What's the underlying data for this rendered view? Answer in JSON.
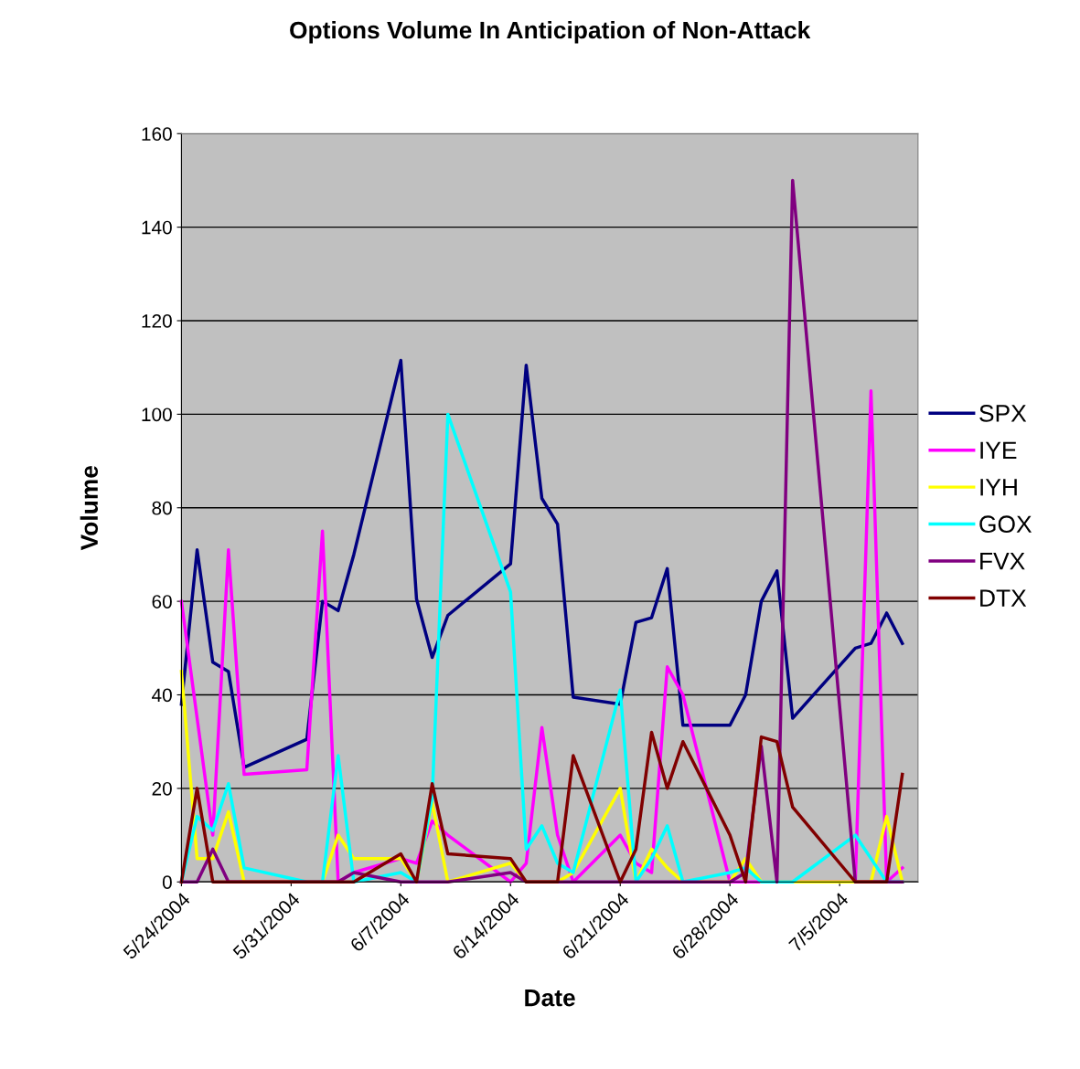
{
  "chart_data": {
    "type": "line",
    "title": "Options Volume In Anticipation of Non-Attack",
    "xlabel": "Date",
    "ylabel": "Volume",
    "x": [
      "2004-05-24",
      "2004-05-25",
      "2004-05-26",
      "2004-05-27",
      "2004-05-28",
      "2004-06-01",
      "2004-06-02",
      "2004-06-03",
      "2004-06-04",
      "2004-06-07",
      "2004-06-08",
      "2004-06-09",
      "2004-06-10",
      "2004-06-14",
      "2004-06-15",
      "2004-06-16",
      "2004-06-17",
      "2004-06-18",
      "2004-06-21",
      "2004-06-22",
      "2004-06-23",
      "2004-06-24",
      "2004-06-25",
      "2004-06-28",
      "2004-06-29",
      "2004-06-30",
      "2004-07-01",
      "2004-07-02",
      "2004-07-06",
      "2004-07-07",
      "2004-07-08",
      "2004-07-09"
    ],
    "series": [
      {
        "name": "SPX",
        "color": "#000080",
        "values": [
          38,
          71,
          47,
          45,
          24.5,
          30.5,
          60,
          58,
          70,
          111.5,
          60.5,
          48,
          57,
          68,
          110.5,
          82,
          76.5,
          39.5,
          38,
          55.5,
          56.5,
          67,
          33.5,
          33.5,
          40,
          60,
          66.5,
          35,
          50,
          51,
          57.5,
          51
        ]
      },
      {
        "name": "IYE",
        "color": "#ff00ff",
        "values": [
          60,
          35,
          10,
          71,
          23,
          24,
          75,
          0,
          2,
          5,
          4,
          13,
          10,
          0,
          4,
          33,
          10,
          0,
          10,
          4,
          2,
          46,
          40,
          0,
          0,
          0,
          0,
          0,
          0,
          105,
          0,
          3
        ]
      },
      {
        "name": "IYH",
        "color": "#ffff00",
        "values": [
          45,
          5,
          5,
          15,
          0,
          0,
          0,
          10,
          5,
          5,
          0,
          17,
          0,
          4,
          0,
          0,
          0,
          2,
          20,
          0,
          7,
          3,
          0,
          0,
          5,
          0,
          0,
          0,
          0,
          0,
          14,
          0
        ]
      },
      {
        "name": "GOX",
        "color": "#00ffff",
        "values": [
          0,
          14,
          11,
          21,
          3,
          0,
          0,
          27,
          0,
          2,
          0,
          18,
          100,
          62,
          7,
          12,
          4,
          2,
          41,
          0,
          5,
          12,
          0,
          2,
          3,
          0,
          0,
          0,
          10,
          5,
          0,
          0
        ]
      },
      {
        "name": "FVX",
        "color": "#800080",
        "values": [
          0,
          0,
          7,
          0,
          0,
          0,
          0,
          0,
          2,
          0,
          0,
          0,
          0,
          2,
          0,
          0,
          0,
          0,
          0,
          0,
          0,
          0,
          0,
          0,
          2,
          29,
          0,
          150,
          0,
          0,
          0,
          0
        ]
      },
      {
        "name": "DTX",
        "color": "#800000",
        "values": [
          0,
          20,
          0,
          0,
          0,
          0,
          0,
          0,
          0,
          6,
          0,
          21,
          6,
          5,
          0,
          0,
          0,
          27,
          0,
          7,
          32,
          20,
          30,
          10,
          0,
          31,
          30,
          16,
          0,
          0,
          0,
          23
        ]
      }
    ],
    "xlim": [
      "2004-05-24",
      "2004-07-10"
    ],
    "xticks": [
      {
        "value": "2004-05-24",
        "label": "5/24/2004"
      },
      {
        "value": "2004-05-31",
        "label": "5/31/2004"
      },
      {
        "value": "2004-06-07",
        "label": "6/7/2004"
      },
      {
        "value": "2004-06-14",
        "label": "6/14/2004"
      },
      {
        "value": "2004-06-21",
        "label": "6/21/2004"
      },
      {
        "value": "2004-06-28",
        "label": "6/28/2004"
      },
      {
        "value": "2004-07-05",
        "label": "7/5/2004"
      }
    ],
    "ylim": [
      0,
      160
    ],
    "yticks": [
      0,
      20,
      40,
      60,
      80,
      100,
      120,
      140,
      160
    ],
    "grid": "y",
    "legend": "right",
    "marker": "none",
    "line_style": "solid"
  }
}
